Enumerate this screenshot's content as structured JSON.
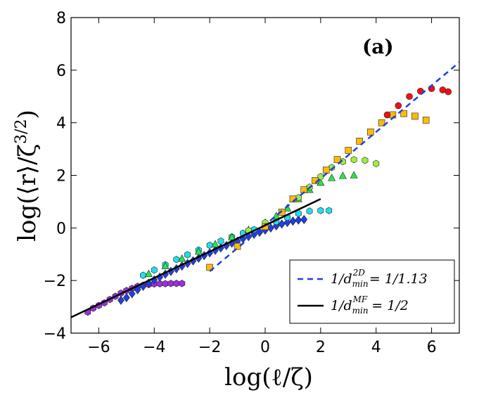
{
  "chart_data": {
    "type": "scatter",
    "panel_label": "(a)",
    "xlabel": "log(ℓ/ζ)",
    "ylabel": "log(⟨r⟩/ζ^{3/2})",
    "xlim": [
      -7,
      7
    ],
    "ylim": [
      -4,
      8
    ],
    "xticks": [
      -6,
      -4,
      -2,
      0,
      2,
      4,
      6
    ],
    "yticks": [
      -4,
      -2,
      0,
      2,
      4,
      6,
      8
    ],
    "xtick_labels": [
      "−6",
      "−4",
      "−2",
      "0",
      "2",
      "4",
      "6"
    ],
    "ytick_labels": [
      "−4",
      "−2",
      "0",
      "2",
      "4",
      "6",
      "8"
    ],
    "grid": false,
    "legend_position": "lower-right",
    "series": [
      {
        "name": "purple",
        "marker": "hexagon",
        "color": "#9b30d9",
        "points": [
          [
            -6.4,
            -3.2
          ],
          [
            -6.2,
            -3.05
          ],
          [
            -6.0,
            -2.95
          ],
          [
            -5.8,
            -2.85
          ],
          [
            -5.6,
            -2.72
          ],
          [
            -5.4,
            -2.6
          ],
          [
            -5.2,
            -2.48
          ],
          [
            -5.0,
            -2.38
          ],
          [
            -4.8,
            -2.3
          ],
          [
            -4.6,
            -2.22
          ],
          [
            -4.4,
            -2.18
          ],
          [
            -4.2,
            -2.15
          ],
          [
            -4.0,
            -2.13
          ],
          [
            -3.8,
            -2.12
          ],
          [
            -3.6,
            -2.12
          ],
          [
            -3.4,
            -2.11
          ],
          [
            -3.2,
            -2.11
          ],
          [
            -3.0,
            -2.11
          ]
        ]
      },
      {
        "name": "blue",
        "marker": "diamond",
        "color": "#1f3fe0",
        "points": [
          [
            -5.2,
            -2.75
          ],
          [
            -5.0,
            -2.65
          ],
          [
            -4.8,
            -2.5
          ],
          [
            -4.6,
            -2.35
          ],
          [
            -4.4,
            -2.22
          ],
          [
            -4.2,
            -2.1
          ],
          [
            -4.0,
            -1.98
          ],
          [
            -3.8,
            -1.87
          ],
          [
            -3.6,
            -1.76
          ],
          [
            -3.4,
            -1.65
          ],
          [
            -3.2,
            -1.55
          ],
          [
            -3.0,
            -1.45
          ],
          [
            -2.8,
            -1.35
          ],
          [
            -2.6,
            -1.25
          ],
          [
            -2.4,
            -1.15
          ],
          [
            -2.2,
            -1.05
          ],
          [
            -2.0,
            -0.95
          ],
          [
            -1.8,
            -0.85
          ],
          [
            -1.6,
            -0.76
          ],
          [
            -1.4,
            -0.67
          ],
          [
            -1.2,
            -0.58
          ],
          [
            -1.0,
            -0.5
          ],
          [
            -0.8,
            -0.41
          ],
          [
            -0.6,
            -0.33
          ],
          [
            -0.4,
            -0.24
          ],
          [
            -0.2,
            -0.16
          ],
          [
            0.0,
            -0.08
          ],
          [
            0.2,
            0.0
          ],
          [
            0.4,
            0.08
          ],
          [
            0.6,
            0.15
          ],
          [
            0.8,
            0.21
          ],
          [
            1.0,
            0.26
          ],
          [
            1.2,
            0.3
          ],
          [
            1.4,
            0.32
          ]
        ]
      },
      {
        "name": "cyan",
        "marker": "hexagon",
        "color": "#22ddee",
        "points": [
          [
            -4.4,
            -1.8
          ],
          [
            -4.0,
            -1.6
          ],
          [
            -3.6,
            -1.4
          ],
          [
            -3.2,
            -1.2
          ],
          [
            -2.8,
            -1.02
          ],
          [
            -2.4,
            -0.84
          ],
          [
            -2.0,
            -0.66
          ],
          [
            -1.6,
            -0.5
          ],
          [
            -1.2,
            -0.34
          ],
          [
            -0.8,
            -0.2
          ],
          [
            -0.4,
            -0.06
          ],
          [
            0.0,
            0.08
          ],
          [
            0.4,
            0.24
          ],
          [
            0.8,
            0.4
          ],
          [
            1.2,
            0.55
          ],
          [
            1.6,
            0.64
          ],
          [
            2.0,
            0.66
          ],
          [
            2.3,
            0.66
          ]
        ]
      },
      {
        "name": "green",
        "marker": "triangle",
        "color": "#27e64a",
        "points": [
          [
            -4.2,
            -1.75
          ],
          [
            -3.6,
            -1.45
          ],
          [
            -3.0,
            -1.17
          ],
          [
            -2.4,
            -0.9
          ],
          [
            -1.8,
            -0.62
          ],
          [
            -1.2,
            -0.35
          ],
          [
            -0.6,
            -0.08
          ],
          [
            0.0,
            0.2
          ],
          [
            0.4,
            0.45
          ],
          [
            0.8,
            0.75
          ],
          [
            1.2,
            1.1
          ],
          [
            1.6,
            1.45
          ],
          [
            2.0,
            1.72
          ],
          [
            2.4,
            1.9
          ],
          [
            2.8,
            1.98
          ],
          [
            3.2,
            2.0
          ]
        ]
      },
      {
        "name": "lime",
        "marker": "hexagon",
        "color": "#9bf03c",
        "points": [
          [
            -0.6,
            -0.1
          ],
          [
            0.0,
            0.2
          ],
          [
            0.6,
            0.6
          ],
          [
            1.2,
            1.15
          ],
          [
            1.6,
            1.55
          ],
          [
            2.0,
            1.95
          ],
          [
            2.4,
            2.3
          ],
          [
            2.8,
            2.52
          ],
          [
            3.2,
            2.6
          ],
          [
            3.6,
            2.57
          ],
          [
            4.0,
            2.45
          ]
        ]
      },
      {
        "name": "orange",
        "marker": "square",
        "color": "#ffbb00",
        "points": [
          [
            -2.0,
            -1.5
          ],
          [
            -1.0,
            -0.7
          ],
          [
            0.0,
            0.05
          ],
          [
            0.6,
            0.6
          ],
          [
            1.0,
            1.1
          ],
          [
            1.4,
            1.45
          ],
          [
            1.8,
            1.8
          ],
          [
            2.2,
            2.2
          ],
          [
            2.6,
            2.6
          ],
          [
            3.0,
            2.95
          ],
          [
            3.4,
            3.3
          ],
          [
            3.8,
            3.65
          ],
          [
            4.2,
            4.0
          ],
          [
            4.6,
            4.3
          ],
          [
            5.0,
            4.35
          ],
          [
            5.4,
            4.25
          ],
          [
            5.8,
            4.1
          ]
        ]
      },
      {
        "name": "red",
        "marker": "circle",
        "color": "#ee1111",
        "points": [
          [
            4.4,
            4.3
          ],
          [
            4.8,
            4.65
          ],
          [
            5.2,
            5.0
          ],
          [
            5.6,
            5.2
          ],
          [
            6.0,
            5.3
          ],
          [
            6.4,
            5.25
          ],
          [
            6.6,
            5.18
          ]
        ]
      }
    ],
    "reference_lines": [
      {
        "label": "1/d_min^{2D} = 1/1.13",
        "style": "dashed",
        "color": "#1f3fe0",
        "x": [
          -2.0,
          7.0
        ],
        "y": [
          -1.65,
          6.3
        ]
      },
      {
        "label": "1/d_min^{MF} = 1/2",
        "style": "solid",
        "color": "#000000",
        "x": [
          -7.0,
          2.0
        ],
        "y": [
          -3.4,
          1.1
        ]
      }
    ],
    "legend": [
      {
        "style": "dashed",
        "color": "#1f3fe0",
        "label": "1/d",
        "sub": "min",
        "sup": "2D",
        "rhs": " = 1/1.13"
      },
      {
        "style": "solid",
        "color": "#000000",
        "label": "1/d",
        "sub": "min",
        "sup": "MF",
        "rhs": " = 1/2"
      }
    ]
  }
}
